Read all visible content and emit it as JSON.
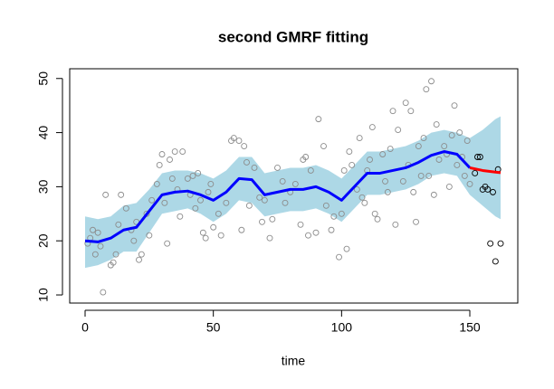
{
  "chart_data": {
    "type": "line",
    "title": "second GMRF fitting",
    "x_label": "time",
    "xlim": [
      -6,
      168.7
    ],
    "ylim": [
      8.5,
      51.8
    ],
    "xticks": [
      0,
      50,
      100,
      150
    ],
    "yticks": [
      10,
      20,
      30,
      40,
      50
    ],
    "series": [
      {
        "type": "band",
        "color": "#add8e6",
        "x": [
          0,
          5,
          10,
          15,
          20,
          25,
          30,
          35,
          40,
          45,
          50,
          55,
          60,
          65,
          70,
          75,
          80,
          85,
          90,
          95,
          100,
          105,
          110,
          115,
          120,
          125,
          130,
          135,
          140,
          145,
          150,
          155,
          160,
          162
        ],
        "lower": [
          15,
          15.5,
          16.5,
          18,
          18,
          21.5,
          25,
          25.5,
          26,
          25,
          23.5,
          25,
          27.5,
          27,
          24.5,
          25,
          25.5,
          25.5,
          26,
          25,
          23.5,
          26,
          28.5,
          28.5,
          29,
          29.5,
          30.5,
          32,
          32.5,
          32,
          28.5,
          26.5,
          24.5,
          24
        ],
        "upper": [
          24.5,
          24,
          24.5,
          26.5,
          27,
          29.5,
          32.5,
          33,
          33,
          32.5,
          31.5,
          33,
          35.5,
          35.5,
          32.5,
          33,
          33.5,
          33.5,
          34,
          33,
          31.5,
          34,
          36.5,
          36.5,
          37,
          37.5,
          38.5,
          40,
          40.5,
          40,
          39,
          40.5,
          42.5,
          43
        ]
      },
      {
        "type": "scatter",
        "color": "#8c8c8c",
        "x": [
          1,
          2,
          3,
          4,
          5,
          6,
          7,
          8,
          10,
          11,
          12,
          13,
          14,
          16,
          18,
          19,
          20,
          21,
          22,
          24,
          25,
          26,
          28,
          29,
          30,
          31,
          32,
          33,
          34,
          35,
          36,
          37,
          38,
          40,
          41,
          42,
          43,
          44,
          45,
          46,
          47,
          48,
          49,
          50,
          52,
          53,
          55,
          57,
          58,
          60,
          61,
          62,
          63,
          64,
          66,
          68,
          69,
          70,
          72,
          73,
          75,
          77,
          78,
          80,
          82,
          84,
          85,
          86,
          87,
          88,
          90,
          91,
          93,
          94,
          96,
          97,
          99,
          100,
          101,
          102,
          103,
          104,
          106,
          107,
          108,
          109,
          110,
          111,
          112,
          113,
          114,
          116,
          117,
          118,
          119,
          120,
          121,
          122,
          124,
          125,
          126,
          127,
          128,
          129,
          130,
          131,
          132,
          133,
          134,
          135,
          136,
          137,
          138,
          140,
          141,
          142,
          143,
          144,
          145,
          146,
          147,
          148,
          149,
          150
        ],
        "values": [
          19.5,
          20.5,
          22,
          17.5,
          21.5,
          19,
          10.5,
          28.5,
          15.5,
          16,
          17.5,
          23,
          28.5,
          26,
          22,
          20,
          23.5,
          16.5,
          17.5,
          25,
          21,
          27.5,
          30.5,
          34,
          36,
          27,
          19.5,
          35,
          31.5,
          36.5,
          29.5,
          24.5,
          36.5,
          31.5,
          28.5,
          32,
          26,
          32.5,
          27.5,
          21.5,
          20.5,
          29,
          30.5,
          22.5,
          25,
          21,
          27,
          38.5,
          39,
          38.5,
          22,
          37.5,
          34.5,
          26.5,
          33.5,
          28,
          23.5,
          27.5,
          20.5,
          24,
          33.5,
          31,
          27,
          29,
          30.5,
          23,
          35,
          35.5,
          21,
          33,
          21.5,
          42.5,
          37.5,
          26.5,
          22,
          24.5,
          17,
          25,
          33,
          18.5,
          36.5,
          34,
          29.5,
          39,
          28,
          27,
          33,
          35,
          41,
          25,
          24,
          36,
          31,
          29,
          37,
          44,
          23,
          40.5,
          31,
          45.5,
          34,
          44,
          29,
          23.5,
          37.5,
          32,
          39,
          48,
          32,
          49.5,
          28.5,
          41.5,
          35,
          37.5,
          36,
          30,
          39.5,
          45,
          34,
          40,
          35.5,
          32,
          38.5,
          30.5
        ]
      },
      {
        "type": "scatter",
        "color": "#000000",
        "x": [
          152,
          153,
          154,
          155,
          156,
          157,
          158,
          159,
          160,
          161,
          162
        ],
        "values": [
          32.5,
          35.5,
          35.5,
          29.5,
          30,
          29.5,
          19.5,
          29,
          16.2,
          33.2,
          19.5
        ]
      },
      {
        "type": "line",
        "color": "#0000ff",
        "x": [
          0,
          5,
          10,
          15,
          20,
          25,
          30,
          35,
          40,
          45,
          50,
          55,
          60,
          65,
          70,
          75,
          80,
          85,
          90,
          95,
          100,
          105,
          110,
          115,
          120,
          125,
          130,
          135,
          140,
          145,
          150
        ],
        "values": [
          20,
          19.8,
          20.5,
          22,
          22.5,
          25.5,
          28.5,
          29,
          29.2,
          28.5,
          27.5,
          29,
          31.5,
          31.3,
          28.5,
          29,
          29.5,
          29.5,
          30,
          29,
          27.5,
          30,
          32.5,
          32.5,
          33,
          33.5,
          34.5,
          35.8,
          36.5,
          36,
          33.5
        ]
      },
      {
        "type": "line",
        "color": "#ff0000",
        "x": [
          150,
          155,
          160,
          162
        ],
        "values": [
          33.5,
          33,
          32.7,
          32.6
        ]
      }
    ]
  }
}
